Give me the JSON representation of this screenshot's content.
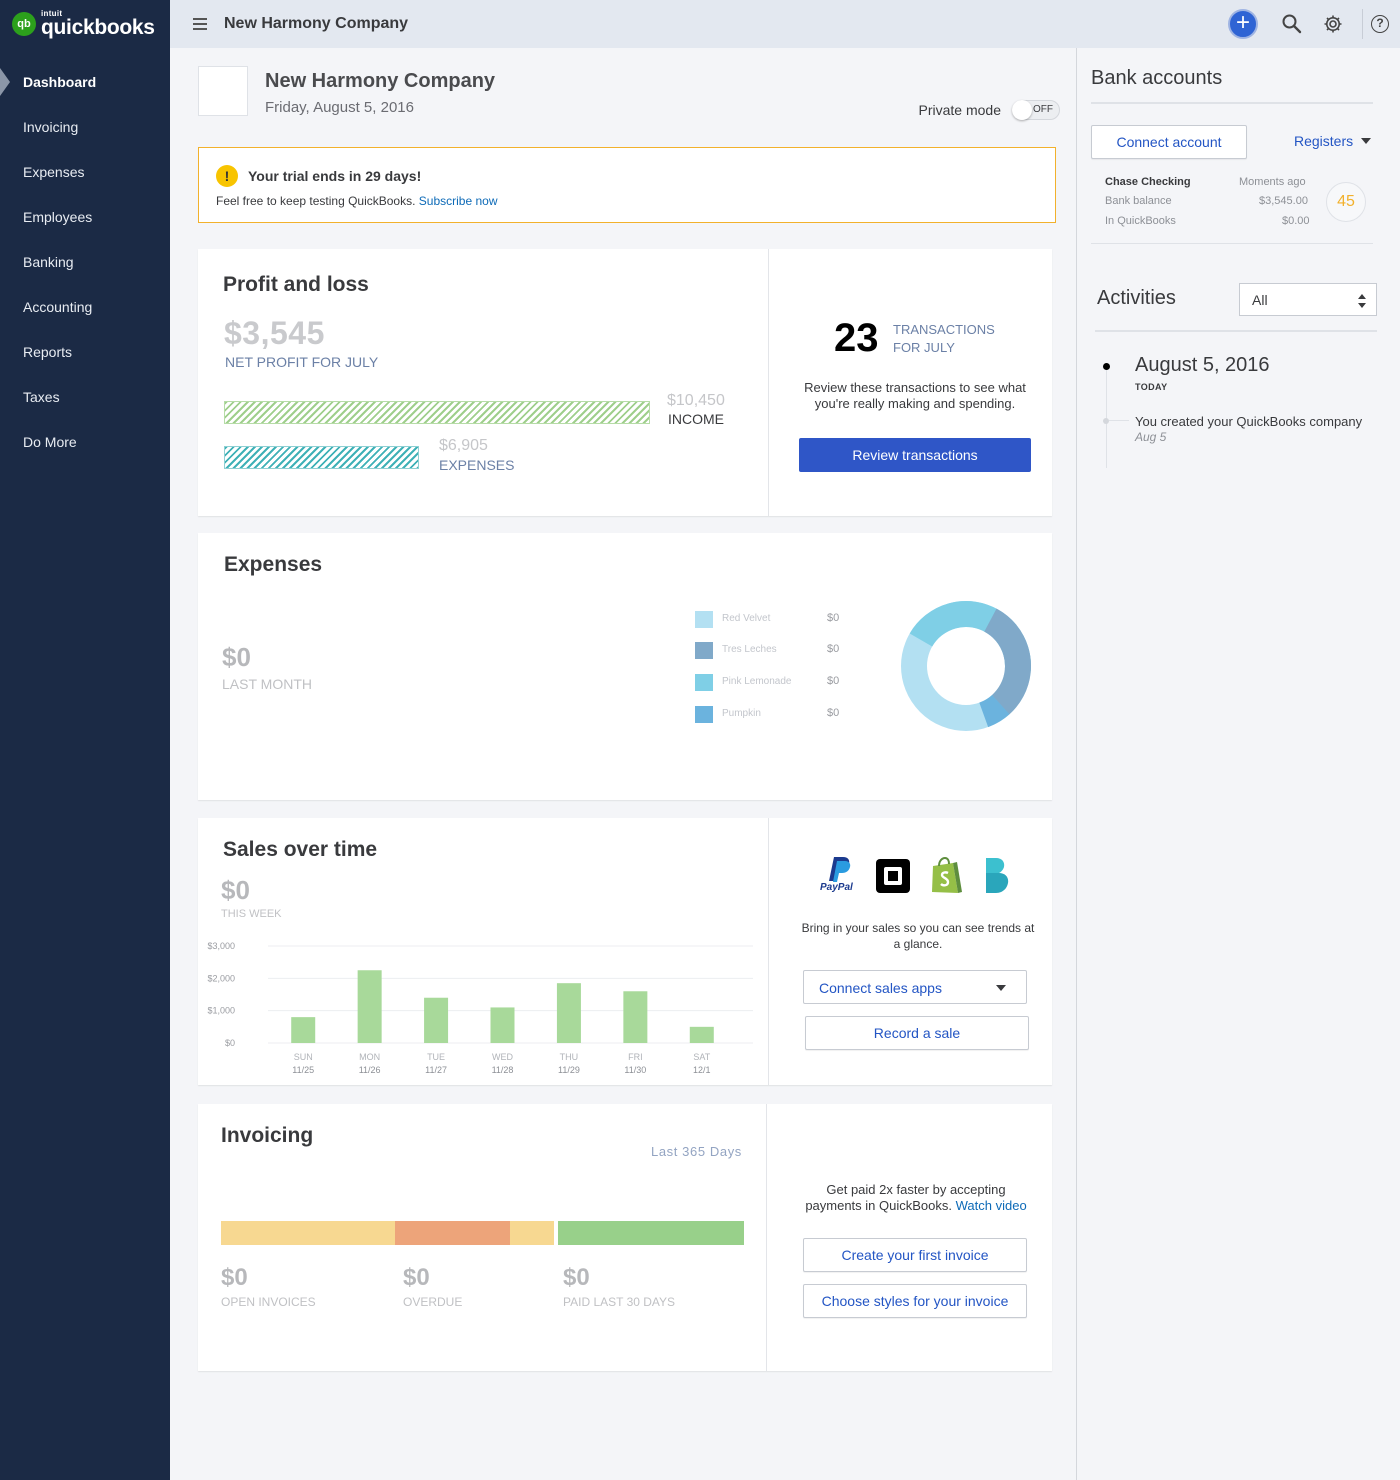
{
  "app": {
    "logo_intuit": "intuit",
    "logo_name": "quickbooks",
    "logo_mark": "qb",
    "brand_color": "#2ca01c"
  },
  "sidebar": {
    "items": [
      {
        "label": "Dashboard",
        "active": true
      },
      {
        "label": "Invoicing"
      },
      {
        "label": "Expenses"
      },
      {
        "label": "Employees"
      },
      {
        "label": "Banking"
      },
      {
        "label": "Accounting"
      },
      {
        "label": "Reports"
      },
      {
        "label": "Taxes"
      },
      {
        "label": "Do More"
      }
    ]
  },
  "header": {
    "company": "New Harmony Company",
    "icons": [
      "menu-icon",
      "plus-icon",
      "search-icon",
      "gear-icon",
      "help-icon"
    ],
    "plus_label": "+",
    "help_label": "?"
  },
  "company": {
    "name": "New Harmony Company",
    "date": "Friday, August 5, 2016",
    "private_mode_label": "Private mode",
    "private_mode_state": "OFF"
  },
  "trial": {
    "icon": "!",
    "title": "Your trial ends in 29 days!",
    "text": "Feel free to keep testing QuickBooks.",
    "link": "Subscribe now"
  },
  "profit_loss": {
    "title": "Profit and loss",
    "net_profit": "$3,545",
    "net_profit_label": "NET PROFIT FOR JULY",
    "income_value": "$10,450",
    "income_label": "INCOME",
    "expenses_value": "$6,905",
    "expenses_label": "EXPENSES",
    "transactions_count": "23",
    "transactions_label_1": "TRANSACTIONS",
    "transactions_label_2": "FOR JULY",
    "review_text": "Review these transactions to see what you're really making and spending.",
    "review_button": "Review transactions"
  },
  "expenses": {
    "title": "Expenses",
    "amount": "$0",
    "period": "LAST MONTH",
    "legend": [
      {
        "name": "Red Velvet",
        "value": "$0",
        "color": "#b3e0f2"
      },
      {
        "name": "Tres Leches",
        "value": "$0",
        "color": "#80a9c9"
      },
      {
        "name": "Pink Lemonade",
        "value": "$0",
        "color": "#7fcfe6"
      },
      {
        "name": "Pumpkin",
        "value": "$0",
        "color": "#6bb3de"
      }
    ]
  },
  "sales": {
    "title": "Sales over time",
    "amount": "$0",
    "period": "THIS WEEK",
    "apps": [
      "paypal-icon",
      "square-icon",
      "shopify-icon",
      "bigcommerce-icon"
    ],
    "paypal_label": "PayPal",
    "description": "Bring in your sales so you can see trends at a glance.",
    "connect_button": "Connect sales apps",
    "record_button": "Record a sale"
  },
  "chart_data": {
    "type": "bar",
    "categories": [
      "SUN",
      "MON",
      "TUE",
      "WED",
      "THU",
      "FRI",
      "SAT"
    ],
    "dates": [
      "11/25",
      "11/26",
      "11/27",
      "11/28",
      "11/29",
      "11/30",
      "12/1"
    ],
    "values": [
      800,
      2250,
      1400,
      1100,
      1850,
      1600,
      500
    ],
    "y_ticks": [
      "$0",
      "$1,000",
      "$2,000",
      "$3,000"
    ],
    "ylim": [
      0,
      3000
    ],
    "grid": true,
    "bar_color": "#a8d99a"
  },
  "invoicing": {
    "title": "Invoicing",
    "range": "Last 365 Days",
    "segments": [
      {
        "fraction": 0.333,
        "color": "#f7d891"
      },
      {
        "fraction": 0.22,
        "color": "#eda47a"
      },
      {
        "fraction": 0.085,
        "color": "#f7d891"
      },
      {
        "fraction": 0.362,
        "color": "#98d08a"
      }
    ],
    "open_amount": "$0",
    "open_label": "OPEN INVOICES",
    "overdue_amount": "$0",
    "overdue_label": "OVERDUE",
    "paid_amount": "$0",
    "paid_label": "PAID LAST 30 DAYS",
    "description": "Get paid 2x faster by accepting payments in QuickBooks.",
    "video_link": "Watch video",
    "create_button": "Create your first invoice",
    "styles_button": "Choose styles for your invoice"
  },
  "bank": {
    "title": "Bank accounts",
    "connect_button": "Connect account",
    "registers": "Registers",
    "account_name": "Chase Checking",
    "updated": "Moments ago",
    "bank_balance_label": "Bank balance",
    "bank_balance": "$3,545.00",
    "in_qb_label": "In QuickBooks",
    "in_qb": "$0.00",
    "to_review": "45"
  },
  "activities": {
    "title": "Activities",
    "filter": "All",
    "date": "August 5, 2016",
    "today": "TODAY",
    "event": "You created your QuickBooks company",
    "event_date": "Aug 5"
  }
}
